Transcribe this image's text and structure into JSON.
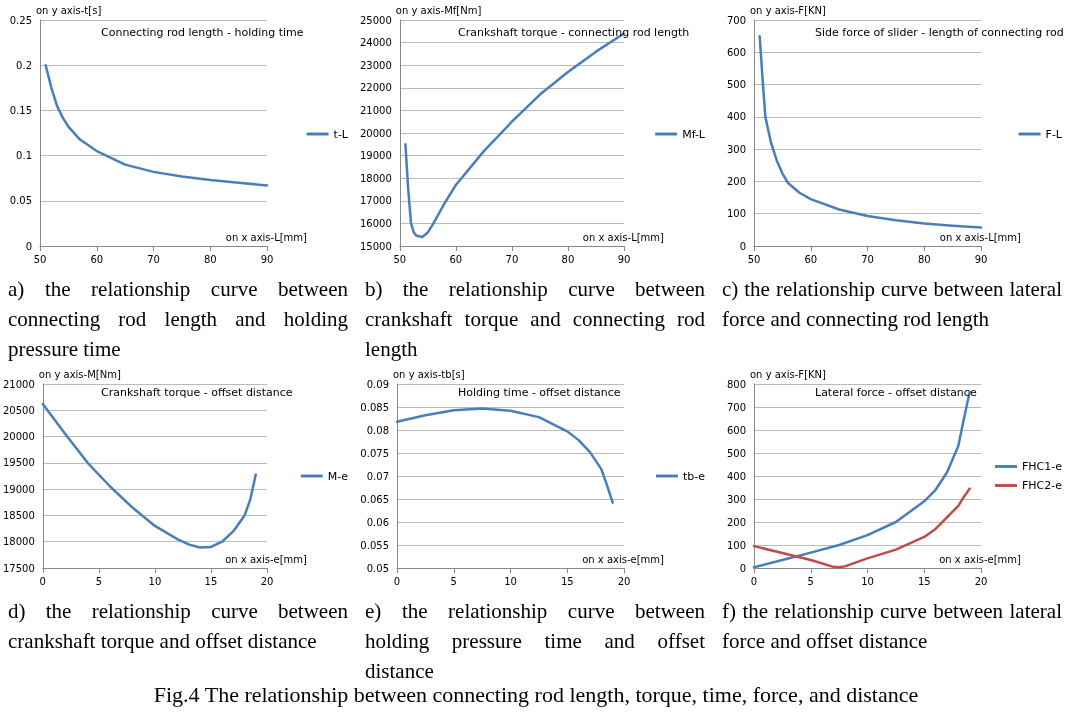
{
  "chart_data": [
    {
      "type": "line",
      "title": "Connecting rod length - holding time",
      "xlabel": "on x axis-L[mm]",
      "ylabel": "on y axis-t[s]",
      "xlim": [
        50,
        90
      ],
      "xticks": [
        50,
        60,
        70,
        80,
        90
      ],
      "ylim": [
        0,
        0.25
      ],
      "yticks": [
        0,
        0.05,
        0.1,
        0.15,
        0.2,
        0.25
      ],
      "grid": "y",
      "legend": "right",
      "marker": "none",
      "line_style": "solid",
      "series": [
        {
          "name": "t-L",
          "color": "#4a7ebb",
          "x": [
            51,
            52,
            53,
            54,
            55,
            57,
            60,
            65,
            70,
            75,
            80,
            85,
            90
          ],
          "values": [
            0.2,
            0.175,
            0.155,
            0.142,
            0.132,
            0.118,
            0.105,
            0.09,
            0.082,
            0.077,
            0.073,
            0.07,
            0.067
          ]
        }
      ],
      "annotations": [
        "a) the relationship curve between connecting rod length and holding pressure time"
      ]
    },
    {
      "type": "line",
      "title": "Crankshaft torque - connecting rod length",
      "xlabel": "on x axis-L[mm]",
      "ylabel": "on y axis-Mf[Nm]",
      "xlim": [
        50,
        90
      ],
      "xticks": [
        50,
        60,
        70,
        80,
        90
      ],
      "ylim": [
        15000,
        25000
      ],
      "yticks": [
        15000,
        16000,
        17000,
        18000,
        19000,
        20000,
        21000,
        22000,
        23000,
        24000,
        25000
      ],
      "grid": "y",
      "legend": "right",
      "marker": "none",
      "line_style": "solid",
      "series": [
        {
          "name": "Mf-L",
          "color": "#4a7ebb",
          "x": [
            51,
            51.5,
            52,
            52.5,
            53,
            54,
            55,
            56,
            58,
            60,
            65,
            70,
            75,
            80,
            85,
            90
          ],
          "values": [
            19500,
            17500,
            16000,
            15600,
            15450,
            15400,
            15600,
            16000,
            16900,
            17700,
            19200,
            20500,
            21700,
            22700,
            23600,
            24400
          ]
        }
      ],
      "annotations": [
        "b) the relationship curve between crankshaft torque and connecting rod length"
      ]
    },
    {
      "type": "line",
      "title": "Side force of slider - length of connecting rod",
      "xlabel": "on x axis-L[mm]",
      "ylabel": "on y axis-F[KN]",
      "xlim": [
        50,
        90
      ],
      "xticks": [
        50,
        60,
        70,
        80,
        90
      ],
      "ylim": [
        0,
        700
      ],
      "yticks": [
        0,
        100,
        200,
        300,
        400,
        500,
        600,
        700
      ],
      "grid": "y",
      "legend": "right",
      "marker": "none",
      "line_style": "solid",
      "series": [
        {
          "name": "F-L",
          "color": "#4a7ebb",
          "x": [
            51,
            51.5,
            52,
            53,
            54,
            55,
            56,
            58,
            60,
            65,
            70,
            75,
            80,
            85,
            90
          ],
          "values": [
            650,
            520,
            400,
            320,
            265,
            225,
            195,
            165,
            145,
            113,
            93,
            80,
            70,
            63,
            57
          ]
        }
      ],
      "annotations": [
        "c) the relationship curve between lateral force and connecting rod length"
      ]
    },
    {
      "type": "line",
      "title": "Crankshaft torque - offset distance",
      "xlabel": "on x axis-e[mm]",
      "ylabel": "on y axis-M[Nm]",
      "xlim": [
        0,
        20
      ],
      "xticks": [
        0,
        5,
        10,
        15,
        20
      ],
      "ylim": [
        17500,
        21000
      ],
      "yticks": [
        17500,
        18000,
        18500,
        19000,
        19500,
        20000,
        20500,
        21000
      ],
      "grid": "y",
      "legend": "right",
      "marker": "none",
      "line_style": "solid",
      "series": [
        {
          "name": "M-e",
          "color": "#4a7ebb",
          "x": [
            0,
            2,
            4,
            6,
            8,
            10,
            12,
            13,
            14,
            15,
            16,
            17,
            18,
            18.5,
            19
          ],
          "values": [
            20620,
            20050,
            19500,
            19050,
            18650,
            18300,
            18050,
            17950,
            17890,
            17900,
            18000,
            18200,
            18500,
            18800,
            19280
          ]
        }
      ],
      "annotations": [
        "d) the relationship curve between crankshaft torque and offset distance"
      ]
    },
    {
      "type": "line",
      "title": "Holding time - offset distance",
      "xlabel": "on x axis-e[mm]",
      "ylabel": "on y axis-tb[s]",
      "xlim": [
        0,
        20
      ],
      "xticks": [
        0,
        5,
        10,
        15,
        20
      ],
      "ylim": [
        0.05,
        0.09
      ],
      "yticks": [
        0.05,
        0.055,
        0.06,
        0.065,
        0.07,
        0.075,
        0.08,
        0.085,
        0.09
      ],
      "grid": "y",
      "legend": "right",
      "marker": "none",
      "line_style": "solid",
      "series": [
        {
          "name": "tb-e",
          "color": "#4a7ebb",
          "x": [
            0,
            2.5,
            5,
            7.5,
            10,
            12.5,
            15,
            16,
            17,
            18,
            18.5,
            19
          ],
          "values": [
            0.0818,
            0.0832,
            0.0843,
            0.0847,
            0.0842,
            0.0828,
            0.0797,
            0.0778,
            0.0752,
            0.0715,
            0.068,
            0.0642
          ]
        }
      ],
      "annotations": [
        "e) the relationship curve between holding pressure time and offset distance"
      ]
    },
    {
      "type": "line",
      "title": "Lateral force - offset distance",
      "xlabel": "on x axis-e[mm]",
      "ylabel": "on y axis-F[KN]",
      "xlim": [
        0,
        20
      ],
      "xticks": [
        0,
        5,
        10,
        15,
        20
      ],
      "ylim": [
        0,
        800
      ],
      "yticks": [
        0,
        100,
        200,
        300,
        400,
        500,
        600,
        700,
        800
      ],
      "grid": "y",
      "legend": "right",
      "marker": "none",
      "line_style": "solid",
      "series": [
        {
          "name": "FHC1-e",
          "color": "#4a7ebb",
          "x": [
            0,
            2.5,
            5,
            7.5,
            10,
            12.5,
            15,
            16,
            17,
            18,
            18.5,
            19
          ],
          "values": [
            3,
            35,
            67,
            100,
            143,
            200,
            290,
            340,
            415,
            530,
            650,
            765
          ]
        },
        {
          "name": "FHC2-e",
          "color": "#be4b48",
          "x": [
            0,
            2.5,
            5,
            7,
            7.5,
            8,
            10,
            12.5,
            15,
            16,
            17,
            18,
            18.5,
            19
          ],
          "values": [
            95,
            65,
            35,
            5,
            3,
            7,
            42,
            80,
            135,
            170,
            220,
            270,
            310,
            345
          ]
        }
      ],
      "annotations": [
        "f) the relationship curve between lateral force and offset distance",
        "Fig.4 The relationship between connecting rod length, torque, time, force, and distance"
      ]
    }
  ]
}
